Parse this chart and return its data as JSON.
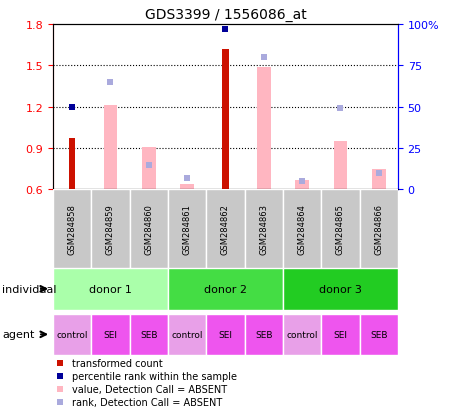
{
  "title": "GDS3399 / 1556086_at",
  "samples": [
    "GSM284858",
    "GSM284859",
    "GSM284860",
    "GSM284861",
    "GSM284862",
    "GSM284863",
    "GSM284864",
    "GSM284865",
    "GSM284866"
  ],
  "ylim": [
    0.6,
    1.8
  ],
  "y2lim": [
    0,
    100
  ],
  "yticks": [
    0.6,
    0.9,
    1.2,
    1.5,
    1.8
  ],
  "y2ticks": [
    0,
    25,
    50,
    75,
    100
  ],
  "red_bars": {
    "GSM284858": 0.97,
    "GSM284862": 1.62
  },
  "pink_bars": {
    "GSM284859": 1.215,
    "GSM284860": 0.905,
    "GSM284861": 0.64,
    "GSM284863": 1.49,
    "GSM284864": 0.665,
    "GSM284865": 0.95,
    "GSM284866": 0.75
  },
  "blue_squares": {
    "GSM284858": 50,
    "GSM284862": 97
  },
  "light_blue_squares": {
    "GSM284859": 65,
    "GSM284860": 15,
    "GSM284861": 7,
    "GSM284863": 80,
    "GSM284864": 5,
    "GSM284865": 49,
    "GSM284866": 10
  },
  "donors": [
    {
      "label": "donor 1",
      "cols": [
        0,
        1,
        2
      ],
      "color": "#AAFFAA"
    },
    {
      "label": "donor 2",
      "cols": [
        3,
        4,
        5
      ],
      "color": "#44DD44"
    },
    {
      "label": "donor 3",
      "cols": [
        6,
        7,
        8
      ],
      "color": "#22CC22"
    }
  ],
  "agents": [
    "control",
    "SEI",
    "SEB",
    "control",
    "SEI",
    "SEB",
    "control",
    "SEI",
    "SEB"
  ],
  "agent_colors": [
    "#E8A0E8",
    "#EE55EE",
    "#EE55EE",
    "#E8A0E8",
    "#EE55EE",
    "#EE55EE",
    "#E8A0E8",
    "#EE55EE",
    "#EE55EE"
  ],
  "bar_bottom": 0.6,
  "red_color": "#CC1100",
  "pink_color": "#FFB6C1",
  "blue_color": "#000099",
  "light_blue_color": "#AAAADD",
  "grid_color": "#000000",
  "bg_color": "#FFFFFF",
  "label_gray": "#C8C8C8",
  "legend_items": [
    {
      "color": "#CC1100",
      "label": "transformed count"
    },
    {
      "color": "#000099",
      "label": "percentile rank within the sample"
    },
    {
      "color": "#FFB6C1",
      "label": "value, Detection Call = ABSENT"
    },
    {
      "color": "#AAAADD",
      "label": "rank, Detection Call = ABSENT"
    }
  ]
}
